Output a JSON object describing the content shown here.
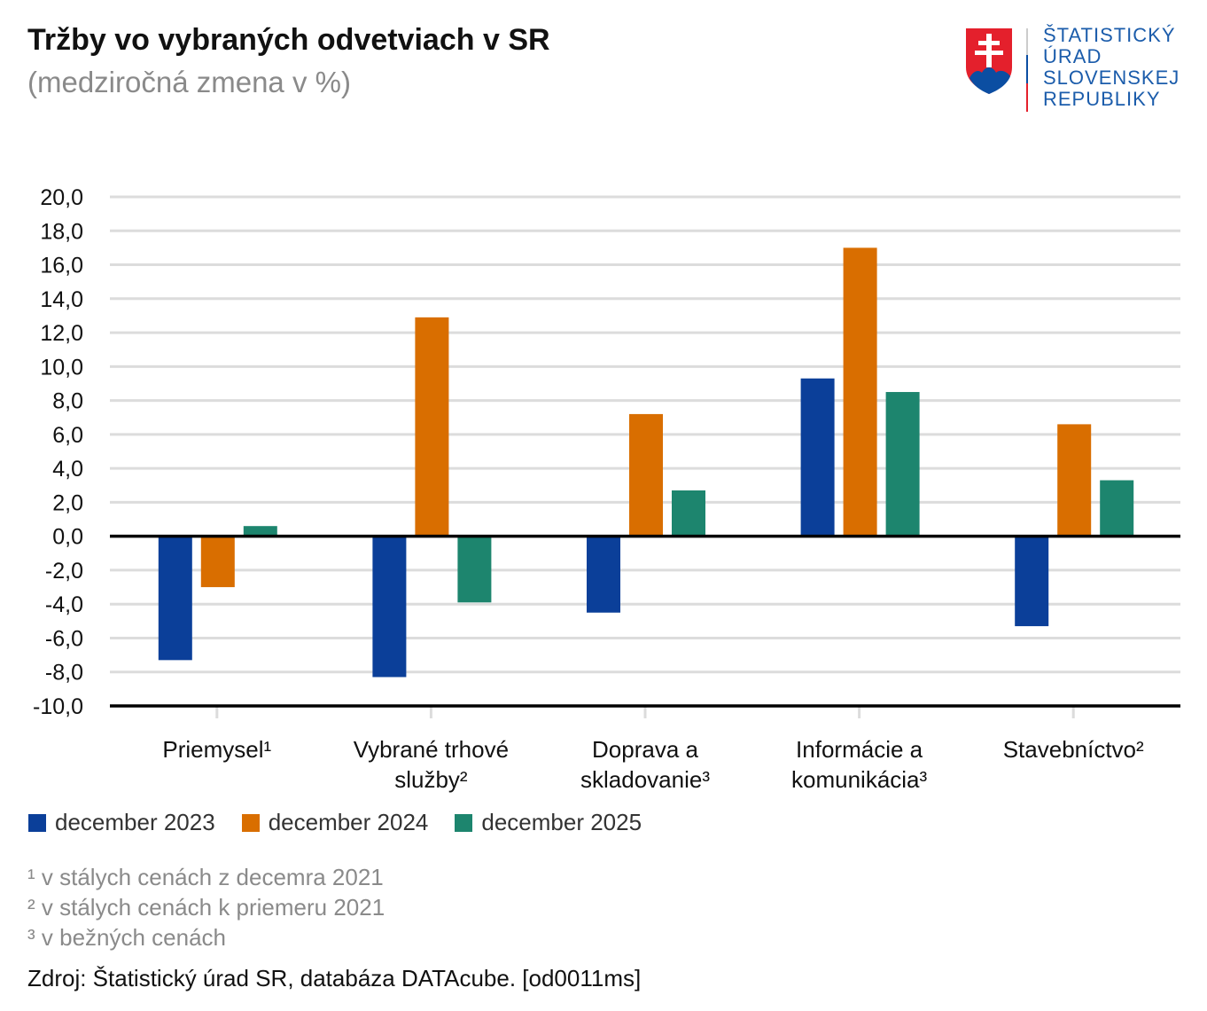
{
  "header": {
    "title": "Tržby vo vybraných odvetviach v SR",
    "subtitle": "(medziročná zmena v %)"
  },
  "logo": {
    "lines": [
      "ŠTATISTICKÝ",
      "ÚRAD",
      "SLOVENSKEJ",
      "REPUBLIKY"
    ]
  },
  "colors": {
    "december 2023": "#0b3f99",
    "december 2024": "#d96e00",
    "december 2025": "#1d856e"
  },
  "chart_data": {
    "type": "bar",
    "title": "Tržby vo vybraných odvetviach v SR",
    "subtitle": "(medziročná zmena v %)",
    "categories": [
      [
        "Priemysel¹"
      ],
      [
        "Vybrané trhové",
        "služby²"
      ],
      [
        "Doprava a",
        "skladovanie³"
      ],
      [
        "Informácie a",
        "komunikácia³"
      ],
      [
        "Stavebníctvo²"
      ]
    ],
    "series": [
      {
        "name": "december 2023",
        "color": "#0b3f99",
        "values": [
          -7.3,
          -8.3,
          -4.5,
          9.3,
          -5.3
        ]
      },
      {
        "name": "december 2024",
        "color": "#d96e00",
        "values": [
          -3.0,
          12.9,
          7.2,
          17.0,
          6.6
        ]
      },
      {
        "name": "december 2025",
        "color": "#1d856e",
        "values": [
          0.6,
          -3.9,
          2.7,
          8.5,
          3.3
        ]
      }
    ],
    "ylim": [
      -10,
      20
    ],
    "yticks": [
      "20,0",
      "18,0",
      "16,0",
      "14,0",
      "12,0",
      "10,0",
      "8,0",
      "6,0",
      "4,0",
      "2,0",
      "0,0",
      "-2,0",
      "-4,0",
      "-6,0",
      "-8,0",
      "-10,0"
    ],
    "grid": true,
    "legend": "bottom-left"
  },
  "notes": [
    "¹ v stálych cenách z decemra 2021",
    "² v stálych cenách k priemeru 2021",
    "³ v bežných cenách"
  ],
  "source": "Zdroj: Štatistický úrad SR, databáza DATAcube. [od0011ms]"
}
